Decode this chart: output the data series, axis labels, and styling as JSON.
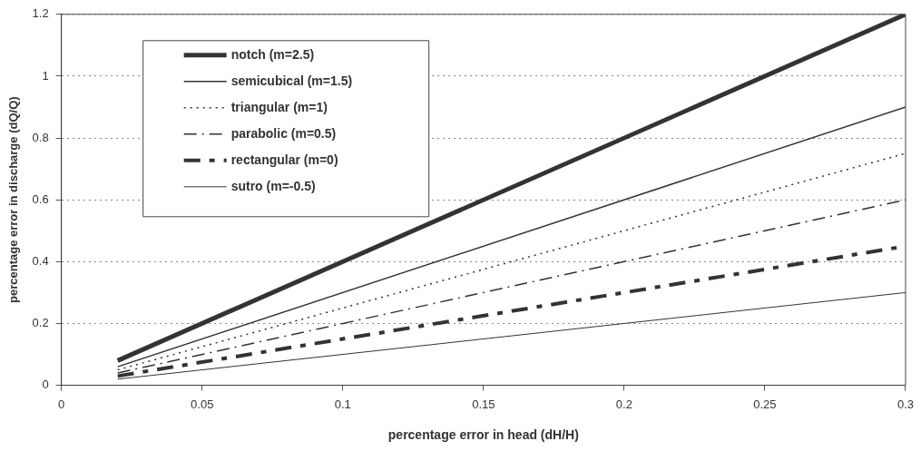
{
  "chart_data": {
    "type": "line",
    "xlabel": "percentage error in head (dH/H)",
    "ylabel": "percentage error in discharge (dQ/Q)",
    "x": [
      0.02,
      0.3
    ],
    "series": [
      {
        "name": "notch (m=2.5)",
        "color": "#333333",
        "values": [
          0.08,
          1.2
        ],
        "line_style": "solid"
      },
      {
        "name": "semicubical (m=1.5)",
        "color": "#333333",
        "values": [
          0.06,
          0.9
        ],
        "line_style": "solid"
      },
      {
        "name": "triangular (m=1)",
        "color": "#333333",
        "values": [
          0.05,
          0.75
        ],
        "line_style": "dotted"
      },
      {
        "name": "parabolic (m=0.5)",
        "color": "#333333",
        "values": [
          0.04,
          0.6
        ],
        "line_style": "dashed"
      },
      {
        "name": "rectangular (m=0)",
        "color": "#333333",
        "values": [
          0.03,
          0.45
        ],
        "line_style": "dashed"
      },
      {
        "name": "sutro (m=-0.5)",
        "color": "#333333",
        "values": [
          0.02,
          0.3
        ],
        "line_style": "solid"
      }
    ],
    "xlim": [
      0,
      0.3
    ],
    "xticks": [
      0,
      0.05,
      0.1,
      0.15,
      0.2,
      0.25,
      0.3
    ],
    "ylim": [
      0,
      1.2
    ],
    "yticks": [
      0,
      0.2,
      0.4,
      0.6,
      0.8,
      1,
      1.2
    ],
    "grid": "y",
    "legend": "top left",
    "marker": "none"
  }
}
